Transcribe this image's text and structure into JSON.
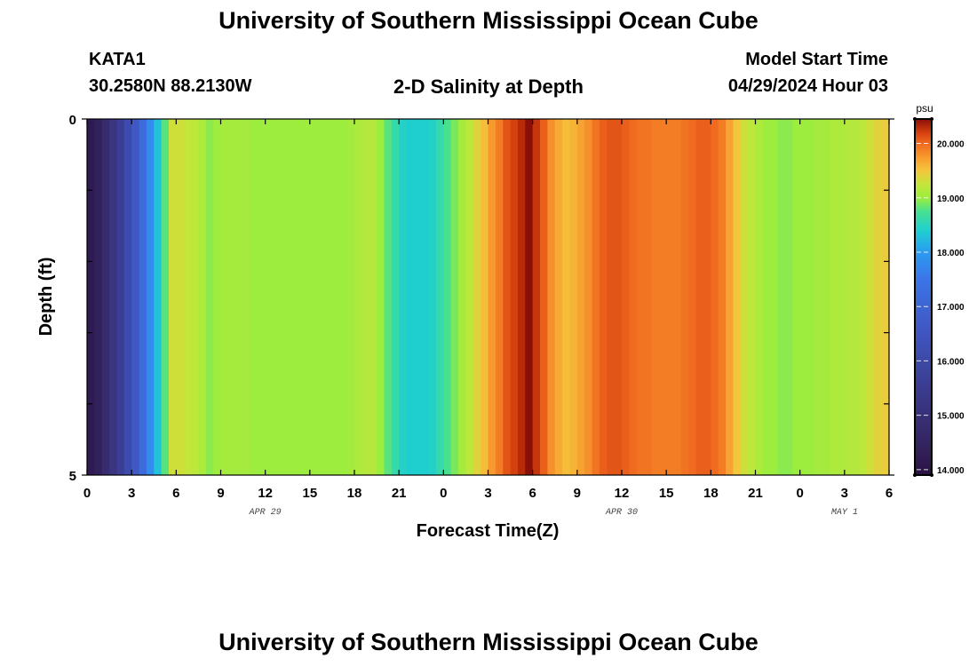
{
  "header": {
    "title": "University of Southern Mississippi Ocean Cube",
    "station": "KATA1",
    "coords": "30.2580N  88.2130W",
    "plot_title": "2-D Salinity at Depth",
    "model_start_label": "Model Start Time",
    "model_start_value": "04/29/2024 Hour 03"
  },
  "footer": {
    "title": "University of Southern Mississippi Ocean Cube"
  },
  "chart_data": {
    "type": "heatmap",
    "title": "2-D Salinity at Depth",
    "xlabel": "Forecast Time(Z)",
    "ylabel": "Depth (ft)",
    "x_ticks": [
      "0",
      "3",
      "6",
      "9",
      "12",
      "15",
      "18",
      "21",
      "0",
      "3",
      "6",
      "9",
      "12",
      "15",
      "18",
      "21",
      "0",
      "3",
      "6"
    ],
    "x_tick_hours": [
      0,
      3,
      6,
      9,
      12,
      15,
      18,
      21,
      24,
      27,
      30,
      33,
      36,
      39,
      42,
      45,
      48,
      51,
      54
    ],
    "xlim": [
      0,
      54
    ],
    "date_labels": [
      {
        "text": "APR 29",
        "hour": 12
      },
      {
        "text": "APR 30",
        "hour": 36
      },
      {
        "text": "MAY 1",
        "hour": 51
      }
    ],
    "y_ticks": [
      "0",
      "5"
    ],
    "ylim": [
      0,
      5
    ],
    "y_inverted": true,
    "colorbar": {
      "unit": "psu",
      "min": 13.9,
      "max": 20.45,
      "ticks": [
        "14.000",
        "15.000",
        "16.000",
        "17.000",
        "18.000",
        "19.000",
        "20.000"
      ],
      "tick_values": [
        14,
        15,
        16,
        17,
        18,
        19,
        20
      ],
      "stops": [
        {
          "v": 13.9,
          "c": "#2a1242"
        },
        {
          "v": 14.5,
          "c": "#342561"
        },
        {
          "v": 15.5,
          "c": "#3b3c8f"
        },
        {
          "v": 16.5,
          "c": "#3f55bf"
        },
        {
          "v": 17.5,
          "c": "#3b75e8"
        },
        {
          "v": 18.0,
          "c": "#2b9bf0"
        },
        {
          "v": 18.4,
          "c": "#1fcfd0"
        },
        {
          "v": 18.75,
          "c": "#47e08f"
        },
        {
          "v": 19.0,
          "c": "#9ced3e"
        },
        {
          "v": 19.25,
          "c": "#c4e53a"
        },
        {
          "v": 19.5,
          "c": "#f4c63c"
        },
        {
          "v": 19.75,
          "c": "#f79a2e"
        },
        {
          "v": 20.0,
          "c": "#f06a1f"
        },
        {
          "v": 20.2,
          "c": "#d4400f"
        },
        {
          "v": 20.45,
          "c": "#8a0f06"
        }
      ]
    },
    "x": [
      0,
      0.5,
      1,
      1.5,
      2,
      2.5,
      3,
      3.5,
      4,
      4.5,
      5,
      5.5,
      6,
      6.5,
      7,
      7.5,
      8,
      8.5,
      9,
      9.5,
      10,
      10.5,
      11,
      11.5,
      12,
      12.5,
      13,
      13.5,
      14,
      14.5,
      15,
      15.5,
      16,
      16.5,
      17,
      17.5,
      18,
      18.5,
      19,
      19.5,
      20,
      20.5,
      21,
      21.5,
      22,
      22.5,
      23,
      23.5,
      24,
      24.5,
      25,
      25.5,
      26,
      26.5,
      27,
      27.5,
      28,
      28.5,
      29,
      29.5,
      30,
      30.5,
      31,
      31.5,
      32,
      32.5,
      33,
      33.5,
      34,
      34.5,
      35,
      35.5,
      36,
      36.5,
      37,
      37.5,
      38,
      38.5,
      39,
      39.5,
      40,
      40.5,
      41,
      41.5,
      42,
      42.5,
      43,
      43.5,
      44,
      44.5,
      45,
      45.5,
      46,
      46.5,
      47,
      47.5,
      48,
      48.5,
      49,
      49.5,
      50,
      50.5,
      51,
      51.5,
      52,
      52.5,
      53,
      53.5
    ],
    "values": [
      14.2,
      14.4,
      14.8,
      15.2,
      15.6,
      16.1,
      16.6,
      17.2,
      17.8,
      18.3,
      18.8,
      19.3,
      19.3,
      19.25,
      19.2,
      19.1,
      18.95,
      19.0,
      19.05,
      19.05,
      19.05,
      19.05,
      19.0,
      19.0,
      19.0,
      19.0,
      19.0,
      19.0,
      19.0,
      19.0,
      19.0,
      19.0,
      19.0,
      19.0,
      19.0,
      19.05,
      19.1,
      19.15,
      19.15,
      19.0,
      18.8,
      18.6,
      18.45,
      18.4,
      18.4,
      18.4,
      18.45,
      18.6,
      18.75,
      18.9,
      19.05,
      19.2,
      19.4,
      19.55,
      19.75,
      19.9,
      20.1,
      20.2,
      20.3,
      20.45,
      20.25,
      20.05,
      19.8,
      19.65,
      19.55,
      19.6,
      19.7,
      19.8,
      19.95,
      20.05,
      20.1,
      20.1,
      20.05,
      20.0,
      19.95,
      19.95,
      19.9,
      19.9,
      19.9,
      19.9,
      19.95,
      20.0,
      20.05,
      20.05,
      20.0,
      19.9,
      19.7,
      19.5,
      19.3,
      19.2,
      19.1,
      19.0,
      19.0,
      18.95,
      18.95,
      19.0,
      19.0,
      19.0,
      19.05,
      19.05,
      19.1,
      19.1,
      19.15,
      19.15,
      19.2,
      19.3,
      19.4,
      19.45
    ]
  }
}
